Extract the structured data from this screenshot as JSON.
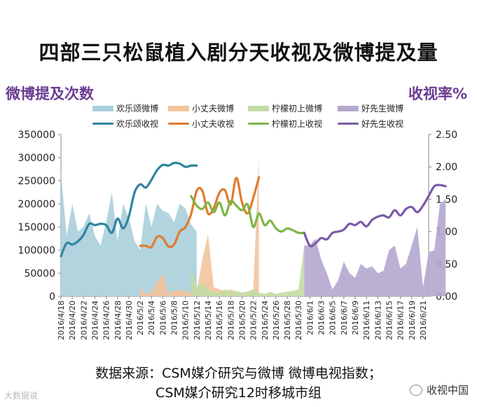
{
  "page": {
    "title": "四部三只松鼠植入剧分天收视及微博提及量",
    "source_line1": "数据来源：CSM媒介研究与微博 微博电视指数；",
    "source_line2": "CSM媒介研究12时移城市组",
    "watermark_left": "大数据说",
    "watermark_right": "收视中国"
  },
  "chart_data": {
    "type": "area+line",
    "ylabel_left": "微博提及次数",
    "ylabel_right": "收视率%",
    "y_left_range": [
      0,
      350000
    ],
    "y_left_ticks": [
      "0",
      "50000",
      "100000",
      "150000",
      "200000",
      "250000",
      "300000",
      "350000"
    ],
    "y_right_range": [
      0,
      2.5
    ],
    "y_right_ticks": [
      "0.00",
      "0.50",
      "1.00",
      "1.50",
      "2.00",
      "2.50"
    ],
    "x_labels": [
      "2016/4/18",
      "2016/4/20",
      "2016/4/22",
      "2016/4/24",
      "2016/4/26",
      "2016/4/28",
      "2016/4/30",
      "2016/5/2",
      "2016/5/4",
      "2016/5/6",
      "2016/5/8",
      "2016/5/10",
      "2016/5/12",
      "2016/5/14",
      "2016/5/16",
      "2016/5/18",
      "2016/5/20",
      "2016/5/22",
      "2016/5/24",
      "2016/5/26",
      "2016/5/28",
      "2016/5/30",
      "2016/6/1",
      "2016/6/3",
      "2016/6/5",
      "2016/6/7",
      "2016/6/9",
      "2016/6/11",
      "2016/6/13",
      "2016/6/15",
      "2016/6/17",
      "2016/6/19",
      "2016/6/21"
    ],
    "x_start": "2016/4/18",
    "x_end": "2016/6/22",
    "legend": {
      "areas": [
        {
          "name": "欢乐颂微博",
          "color": "#a9cfdc"
        },
        {
          "name": "小丈夫微博",
          "color": "#f4c39c"
        },
        {
          "name": "柠檬初上微博",
          "color": "#c3dca4"
        },
        {
          "name": "好先生微博",
          "color": "#b4a7ce"
        }
      ],
      "lines": [
        {
          "name": "欢乐颂收视",
          "color": "#2f84a0"
        },
        {
          "name": "小丈夫收视",
          "color": "#e07b2e"
        },
        {
          "name": "柠檬初上收视",
          "color": "#7cb645"
        },
        {
          "name": "好先生收视",
          "color": "#7a5aa6"
        }
      ]
    },
    "weibo_series": [
      {
        "name": "欢乐颂微博",
        "color": "#a9cfdc",
        "start": "2016/4/18",
        "values": [
          270000,
          130000,
          200000,
          140000,
          150000,
          180000,
          130000,
          110000,
          160000,
          225000,
          120000,
          200000,
          170000,
          120000,
          100000,
          200000,
          150000,
          200000,
          185000,
          180000,
          160000,
          200000,
          190000,
          155000,
          140000
        ]
      },
      {
        "name": "小丈夫微博",
        "color": "#f4c39c",
        "start": "2016/5/2",
        "values": [
          20000,
          5000,
          10000,
          30000,
          50000,
          8000,
          12000,
          15000,
          10000,
          8000,
          10000,
          80000,
          135000,
          20000,
          15000,
          12000,
          15000,
          10000,
          8000,
          10000,
          15000,
          300000
        ]
      },
      {
        "name": "柠檬初上微博",
        "color": "#c3dca4",
        "start": "2016/5/11",
        "values": [
          60000,
          20000,
          30000,
          15000,
          10000,
          8000,
          15000,
          10000,
          12000,
          8000,
          10000,
          15000,
          8000,
          5000,
          10000,
          5000,
          8000,
          10000,
          12000,
          15000,
          110000
        ]
      },
      {
        "name": "好先生微博",
        "color": "#b4a7ce",
        "start": "2016/5/31",
        "values": [
          110000,
          110000,
          125000,
          80000,
          50000,
          15000,
          35000,
          75000,
          50000,
          40000,
          70000,
          60000,
          65000,
          50000,
          55000,
          100000,
          110000,
          60000,
          70000,
          110000,
          150000,
          20000,
          95000,
          100000,
          200000,
          210000
        ]
      }
    ],
    "rating_series": [
      {
        "name": "欢乐颂收视",
        "color": "#2f84a0",
        "start": "2016/4/18",
        "values": [
          0.62,
          0.82,
          0.8,
          0.85,
          0.95,
          1.12,
          1.1,
          1.12,
          1.1,
          0.98,
          1.2,
          1.05,
          1.23,
          1.6,
          1.73,
          1.68,
          1.8,
          1.95,
          2.03,
          2.02,
          2.06,
          2.05,
          2.0,
          2.02,
          2.02
        ]
      },
      {
        "name": "小丈夫收视",
        "color": "#e07b2e",
        "start": "2016/5/2",
        "values": [
          0.78,
          0.78,
          0.76,
          0.92,
          0.9,
          0.77,
          0.8,
          1.0,
          1.07,
          1.27,
          1.63,
          1.63,
          1.28,
          1.36,
          1.6,
          1.64,
          1.42,
          1.83,
          1.45,
          1.28,
          1.52,
          1.84
        ]
      },
      {
        "name": "柠檬初上收视",
        "color": "#7cb645",
        "start": "2016/5/11",
        "values": [
          1.55,
          1.4,
          1.35,
          1.45,
          1.3,
          1.45,
          1.25,
          1.47,
          1.4,
          1.33,
          1.42,
          1.07,
          1.28,
          1.1,
          1.17,
          1.05,
          1.0,
          1.05,
          1.02,
          0.98,
          0.98
        ]
      },
      {
        "name": "好先生收视",
        "color": "#7a5aa6",
        "start": "2016/5/31",
        "values": [
          0.98,
          0.78,
          0.82,
          0.9,
          0.88,
          0.98,
          1.0,
          1.03,
          1.12,
          1.1,
          1.15,
          1.08,
          1.18,
          1.23,
          1.25,
          1.22,
          1.33,
          1.25,
          1.35,
          1.38,
          1.3,
          1.4,
          1.55,
          1.7,
          1.72,
          1.7
        ]
      }
    ]
  }
}
